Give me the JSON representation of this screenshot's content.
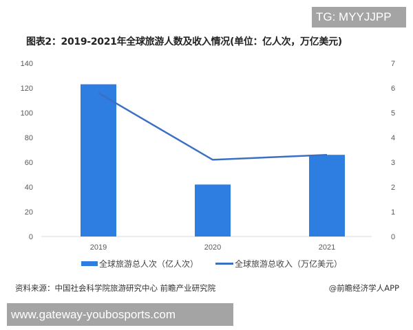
{
  "watermark_badge": "TG: MYYJJPP",
  "url_badge": "www.gateway-youbosports.com",
  "footer": {
    "source": "资料来源：中国社会科学院旅游研究中心 前瞻产业研究院",
    "app": "@前瞻经济学人APP"
  },
  "colors": {
    "bar": "#2e7de1",
    "line": "#3a6fc4",
    "axis": "#d9d9d9"
  },
  "chart_data": {
    "type": "bar",
    "title": "图表2：2019-2021年全球旅游人数及收入情况(单位：亿人次，万亿美元)",
    "categories": [
      "2019",
      "2020",
      "2021"
    ],
    "series": [
      {
        "name": "全球旅游总人次（亿人次）",
        "type": "bar",
        "axis": "left",
        "values": [
          123,
          42,
          66
        ]
      },
      {
        "name": "全球旅游总收入（万亿美元）",
        "type": "line",
        "axis": "right",
        "values": [
          5.8,
          3.1,
          3.3
        ]
      }
    ],
    "y_left": {
      "ticks": [
        "0",
        "20",
        "40",
        "60",
        "80",
        "100",
        "120",
        "140"
      ],
      "ylim": [
        0,
        140
      ]
    },
    "y_right": {
      "ticks": [
        "0",
        "1",
        "2",
        "3",
        "4",
        "5",
        "6",
        "7"
      ],
      "ylim": [
        0,
        7
      ]
    },
    "xlabel": "",
    "ylabel": "",
    "grid": false,
    "legend_position": "bottom"
  }
}
